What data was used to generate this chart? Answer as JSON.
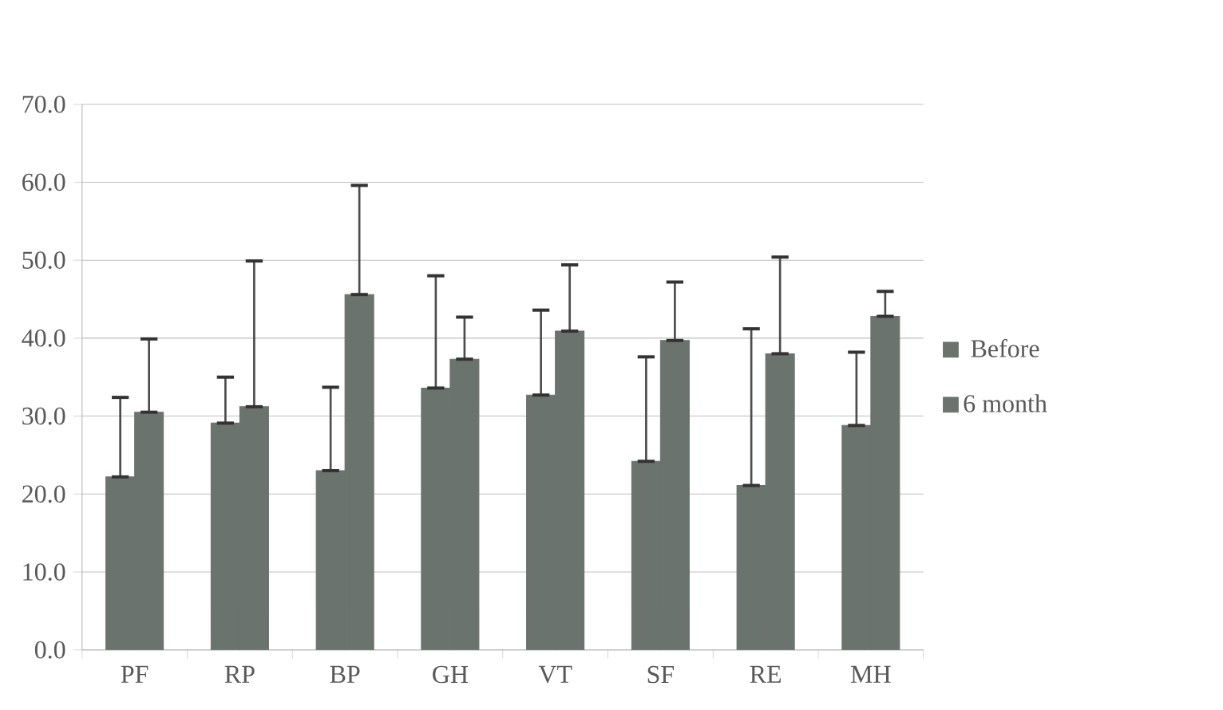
{
  "chart_data": {
    "type": "bar",
    "categories": [
      "PF",
      "RP",
      "BP",
      "GH",
      "VT",
      "SF",
      "RE",
      "MH"
    ],
    "series": [
      {
        "name": "Before",
        "color": "#6b736e",
        "values": [
          22.2,
          29.1,
          23.0,
          33.6,
          32.7,
          24.2,
          21.1,
          28.8
        ],
        "errors": [
          [
            22.2,
            32.4
          ],
          [
            29.1,
            35.0
          ],
          [
            23.0,
            33.7
          ],
          [
            33.6,
            48.0
          ],
          [
            32.7,
            43.6
          ],
          [
            24.2,
            37.6
          ],
          [
            21.1,
            41.2
          ],
          [
            28.8,
            38.2
          ]
        ]
      },
      {
        "name": "6 month",
        "color": "#6b736e",
        "values": [
          30.5,
          31.2,
          45.6,
          37.3,
          40.9,
          39.7,
          38.0,
          42.8
        ],
        "errors": [
          [
            30.5,
            39.9
          ],
          [
            31.2,
            49.9
          ],
          [
            45.6,
            59.6
          ],
          [
            37.3,
            42.7
          ],
          [
            40.9,
            49.4
          ],
          [
            39.7,
            47.2
          ],
          [
            38.0,
            50.4
          ],
          [
            42.8,
            46.0
          ]
        ]
      }
    ],
    "ylim": [
      0,
      70
    ],
    "yticks": [
      {
        "value": 0,
        "label": "0.0"
      },
      {
        "value": 10,
        "label": "10.0"
      },
      {
        "value": 20,
        "label": "20.0"
      },
      {
        "value": 30,
        "label": "30.0"
      },
      {
        "value": 40,
        "label": "40.0"
      },
      {
        "value": 50,
        "label": "50.0"
      },
      {
        "value": 60,
        "label": "60.0"
      },
      {
        "value": 70,
        "label": "70.0"
      }
    ],
    "grid": "y",
    "legend": "right"
  }
}
